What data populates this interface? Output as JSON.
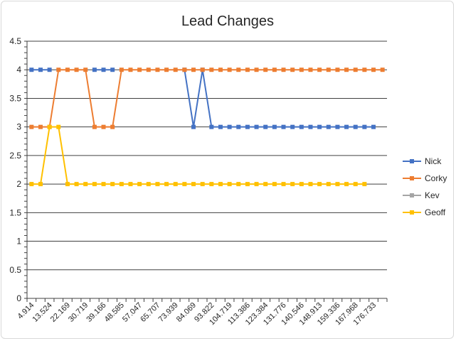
{
  "chart_data": {
    "type": "line",
    "title": "Lead Changes",
    "xlabel": "",
    "ylabel": "",
    "ylim": [
      0,
      4.5
    ],
    "y_ticks": [
      "0",
      "0.5",
      "1",
      "1.5",
      "2",
      "2.5",
      "3",
      "3.5",
      "4",
      "4.5"
    ],
    "grid": "horizontal",
    "legend_position": "right",
    "x_tick_labels": [
      "4.914",
      "13.524",
      "22.169",
      "30.719",
      "39.166",
      "48.585",
      "57.047",
      "65.707",
      "73.939",
      "84.069",
      "93.822",
      "104.719",
      "113.386",
      "123.384",
      "131.776",
      "140.546",
      "148.913",
      "159.336",
      "167.968",
      "176.733"
    ],
    "x_count": 40,
    "series": [
      {
        "name": "Nick",
        "color": "#4472C4",
        "values": [
          4,
          4,
          4,
          null,
          null,
          null,
          null,
          4,
          4,
          4,
          null,
          null,
          null,
          null,
          null,
          null,
          null,
          4,
          3,
          4,
          3,
          3,
          3,
          3,
          3,
          3,
          3,
          3,
          3,
          3,
          3,
          3,
          3,
          3,
          3,
          3,
          3,
          3,
          3,
          null
        ]
      },
      {
        "name": "Corky",
        "color": "#ED7D31",
        "values": [
          3,
          3,
          3,
          4,
          4,
          4,
          4,
          3,
          3,
          3,
          4,
          4,
          4,
          4,
          4,
          4,
          4,
          4,
          4,
          4,
          4,
          4,
          4,
          4,
          4,
          4,
          4,
          4,
          4,
          4,
          4,
          4,
          4,
          4,
          4,
          4,
          4,
          4,
          4,
          4
        ]
      },
      {
        "name": "Kev",
        "color": "#A5A5A5",
        "values": []
      },
      {
        "name": "Geoff",
        "color": "#FFC000",
        "values": [
          2,
          2,
          3,
          3,
          2,
          2,
          2,
          2,
          2,
          2,
          2,
          2,
          2,
          2,
          2,
          2,
          2,
          2,
          2,
          2,
          2,
          2,
          2,
          2,
          2,
          2,
          2,
          2,
          2,
          2,
          2,
          2,
          2,
          2,
          2,
          2,
          2,
          2,
          null,
          null
        ]
      }
    ]
  }
}
